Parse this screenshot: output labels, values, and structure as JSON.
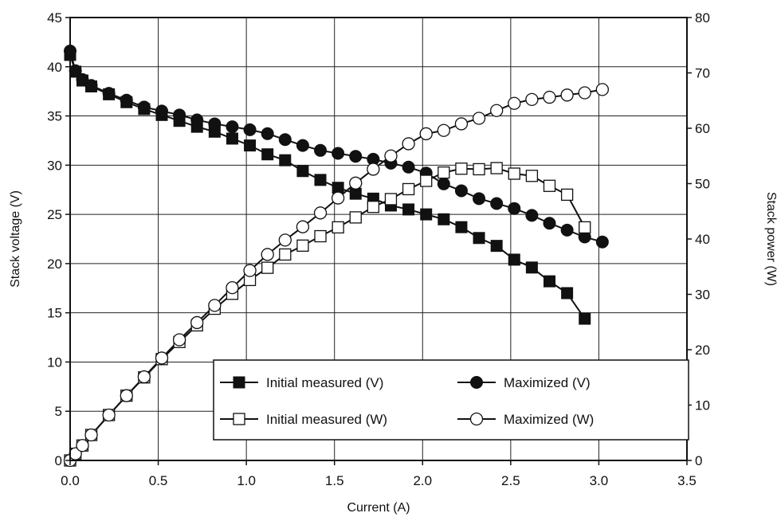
{
  "chart_data": {
    "type": "line",
    "xlabel": "Current (A)",
    "ylabel": "Stack voltage (V)",
    "y2label": "Stack power (W)",
    "xlim": [
      0,
      3.5
    ],
    "ylim": [
      0,
      45
    ],
    "y2lim": [
      0,
      80
    ],
    "xticks": [
      "0.0",
      "0.5",
      "1.0",
      "1.5",
      "2.0",
      "2.5",
      "3.0",
      "3.5"
    ],
    "yticks": [
      "0",
      "5",
      "10",
      "15",
      "20",
      "25",
      "30",
      "35",
      "40",
      "45"
    ],
    "y2ticks": [
      "0",
      "10",
      "20",
      "30",
      "40",
      "50",
      "60",
      "70",
      "80"
    ],
    "grid": true,
    "legend_position": "lower-right",
    "series": [
      {
        "name": "Initial measured (V)",
        "axis": "left",
        "marker": "square-filled",
        "points": [
          [
            0.0,
            41.2
          ],
          [
            0.03,
            39.5
          ],
          [
            0.07,
            38.6
          ],
          [
            0.12,
            38.0
          ],
          [
            0.22,
            37.2
          ],
          [
            0.32,
            36.4
          ],
          [
            0.42,
            35.7
          ],
          [
            0.52,
            35.1
          ],
          [
            0.62,
            34.5
          ],
          [
            0.72,
            33.9
          ],
          [
            0.82,
            33.4
          ],
          [
            0.92,
            32.7
          ],
          [
            1.02,
            32.0
          ],
          [
            1.12,
            31.1
          ],
          [
            1.22,
            30.5
          ],
          [
            1.32,
            29.4
          ],
          [
            1.42,
            28.5
          ],
          [
            1.52,
            27.7
          ],
          [
            1.62,
            27.1
          ],
          [
            1.72,
            26.6
          ],
          [
            1.82,
            25.9
          ],
          [
            1.92,
            25.5
          ],
          [
            2.02,
            25.0
          ],
          [
            2.12,
            24.5
          ],
          [
            2.22,
            23.7
          ],
          [
            2.32,
            22.6
          ],
          [
            2.42,
            21.8
          ],
          [
            2.52,
            20.4
          ],
          [
            2.62,
            19.6
          ],
          [
            2.72,
            18.2
          ],
          [
            2.82,
            17.0
          ],
          [
            2.92,
            14.4
          ]
        ]
      },
      {
        "name": "Maximized (V)",
        "axis": "left",
        "marker": "circle-filled",
        "points": [
          [
            0.0,
            41.6
          ],
          [
            0.03,
            39.6
          ],
          [
            0.07,
            38.7
          ],
          [
            0.12,
            38.1
          ],
          [
            0.22,
            37.3
          ],
          [
            0.32,
            36.6
          ],
          [
            0.42,
            35.9
          ],
          [
            0.52,
            35.5
          ],
          [
            0.62,
            35.1
          ],
          [
            0.72,
            34.6
          ],
          [
            0.82,
            34.2
          ],
          [
            0.92,
            33.9
          ],
          [
            1.02,
            33.6
          ],
          [
            1.12,
            33.2
          ],
          [
            1.22,
            32.6
          ],
          [
            1.32,
            32.0
          ],
          [
            1.42,
            31.5
          ],
          [
            1.52,
            31.2
          ],
          [
            1.62,
            30.9
          ],
          [
            1.72,
            30.6
          ],
          [
            1.82,
            30.2
          ],
          [
            1.92,
            29.8
          ],
          [
            2.02,
            29.2
          ],
          [
            2.12,
            28.1
          ],
          [
            2.22,
            27.4
          ],
          [
            2.32,
            26.6
          ],
          [
            2.42,
            26.1
          ],
          [
            2.52,
            25.6
          ],
          [
            2.62,
            24.9
          ],
          [
            2.72,
            24.1
          ],
          [
            2.82,
            23.4
          ],
          [
            2.92,
            22.7
          ],
          [
            3.02,
            22.2
          ]
        ]
      },
      {
        "name": "Initial measured (W)",
        "axis": "right",
        "marker": "square-open",
        "points": [
          [
            0.0,
            0.0
          ],
          [
            0.03,
            1.2
          ],
          [
            0.07,
            2.7
          ],
          [
            0.12,
            4.6
          ],
          [
            0.22,
            8.2
          ],
          [
            0.32,
            11.7
          ],
          [
            0.42,
            15.0
          ],
          [
            0.52,
            18.3
          ],
          [
            0.62,
            21.4
          ],
          [
            0.72,
            24.4
          ],
          [
            0.82,
            27.4
          ],
          [
            0.92,
            30.1
          ],
          [
            1.02,
            32.6
          ],
          [
            1.12,
            34.8
          ],
          [
            1.22,
            37.2
          ],
          [
            1.32,
            38.8
          ],
          [
            1.42,
            40.5
          ],
          [
            1.52,
            42.1
          ],
          [
            1.62,
            43.9
          ],
          [
            1.72,
            45.8
          ],
          [
            1.82,
            47.2
          ],
          [
            1.92,
            49.0
          ],
          [
            2.02,
            50.5
          ],
          [
            2.12,
            52.0
          ],
          [
            2.22,
            52.7
          ],
          [
            2.32,
            52.6
          ],
          [
            2.42,
            52.8
          ],
          [
            2.52,
            51.8
          ],
          [
            2.62,
            51.4
          ],
          [
            2.72,
            49.6
          ],
          [
            2.82,
            48.0
          ],
          [
            2.92,
            42.1
          ]
        ]
      },
      {
        "name": "Maximized (W)",
        "axis": "right",
        "marker": "circle-open",
        "points": [
          [
            0.0,
            0.0
          ],
          [
            0.03,
            1.2
          ],
          [
            0.07,
            2.7
          ],
          [
            0.12,
            4.6
          ],
          [
            0.22,
            8.2
          ],
          [
            0.32,
            11.7
          ],
          [
            0.42,
            15.1
          ],
          [
            0.52,
            18.5
          ],
          [
            0.62,
            21.8
          ],
          [
            0.72,
            24.9
          ],
          [
            0.82,
            28.0
          ],
          [
            0.92,
            31.2
          ],
          [
            1.02,
            34.3
          ],
          [
            1.12,
            37.2
          ],
          [
            1.22,
            39.8
          ],
          [
            1.32,
            42.2
          ],
          [
            1.42,
            44.7
          ],
          [
            1.52,
            47.4
          ],
          [
            1.62,
            50.1
          ],
          [
            1.72,
            52.6
          ],
          [
            1.82,
            55.0
          ],
          [
            1.92,
            57.2
          ],
          [
            2.02,
            59.0
          ],
          [
            2.12,
            59.6
          ],
          [
            2.22,
            60.8
          ],
          [
            2.32,
            61.8
          ],
          [
            2.42,
            63.2
          ],
          [
            2.52,
            64.5
          ],
          [
            2.62,
            65.2
          ],
          [
            2.72,
            65.6
          ],
          [
            2.82,
            66.0
          ],
          [
            2.92,
            66.4
          ],
          [
            3.02,
            67.0
          ]
        ]
      }
    ]
  }
}
